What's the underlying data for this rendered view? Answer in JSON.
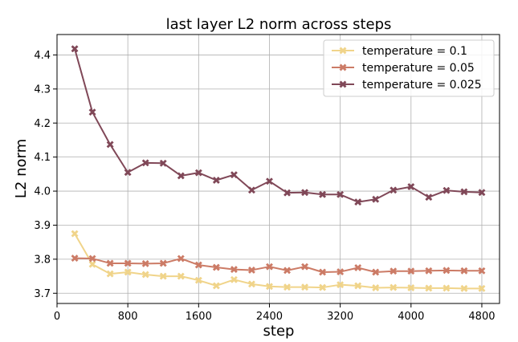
{
  "chart_data": {
    "type": "line",
    "title": "last layer L2 norm across steps",
    "xlabel": "step",
    "ylabel": "L2 norm",
    "xlim": [
      0,
      5000
    ],
    "ylim": [
      3.67,
      4.46
    ],
    "xticks": [
      0,
      800,
      1600,
      2400,
      3200,
      4000,
      4800
    ],
    "yticks": [
      3.7,
      3.8,
      3.9,
      4.0,
      4.1,
      4.2,
      4.3,
      4.4
    ],
    "grid": true,
    "legend_position": "top-right",
    "x": [
      200,
      400,
      600,
      800,
      1000,
      1200,
      1400,
      1600,
      1800,
      2000,
      2200,
      2400,
      2600,
      2800,
      3000,
      3200,
      3400,
      3600,
      3800,
      4000,
      4200,
      4400,
      4600,
      4800
    ],
    "series": [
      {
        "name": "temperature = 0.1",
        "color": "#f0d48a",
        "values": [
          3.875,
          3.785,
          3.757,
          3.762,
          3.755,
          3.75,
          3.75,
          3.738,
          3.722,
          3.74,
          3.727,
          3.72,
          3.718,
          3.718,
          3.717,
          3.725,
          3.722,
          3.716,
          3.717,
          3.716,
          3.715,
          3.715,
          3.714,
          3.714
        ]
      },
      {
        "name": "temperature = 0.05",
        "color": "#cc7b66",
        "values": [
          3.803,
          3.802,
          3.788,
          3.788,
          3.787,
          3.788,
          3.802,
          3.783,
          3.776,
          3.77,
          3.768,
          3.778,
          3.767,
          3.778,
          3.762,
          3.763,
          3.775,
          3.762,
          3.765,
          3.765,
          3.766,
          3.767,
          3.766,
          3.766
        ]
      },
      {
        "name": "temperature = 0.025",
        "color": "#804858",
        "values": [
          4.418,
          4.232,
          4.137,
          4.055,
          4.083,
          4.082,
          4.045,
          4.054,
          4.032,
          4.048,
          4.003,
          4.029,
          3.995,
          3.996,
          3.99,
          3.99,
          3.968,
          3.976,
          4.003,
          4.013,
          3.982,
          4.002,
          3.998,
          3.996
        ]
      }
    ]
  }
}
